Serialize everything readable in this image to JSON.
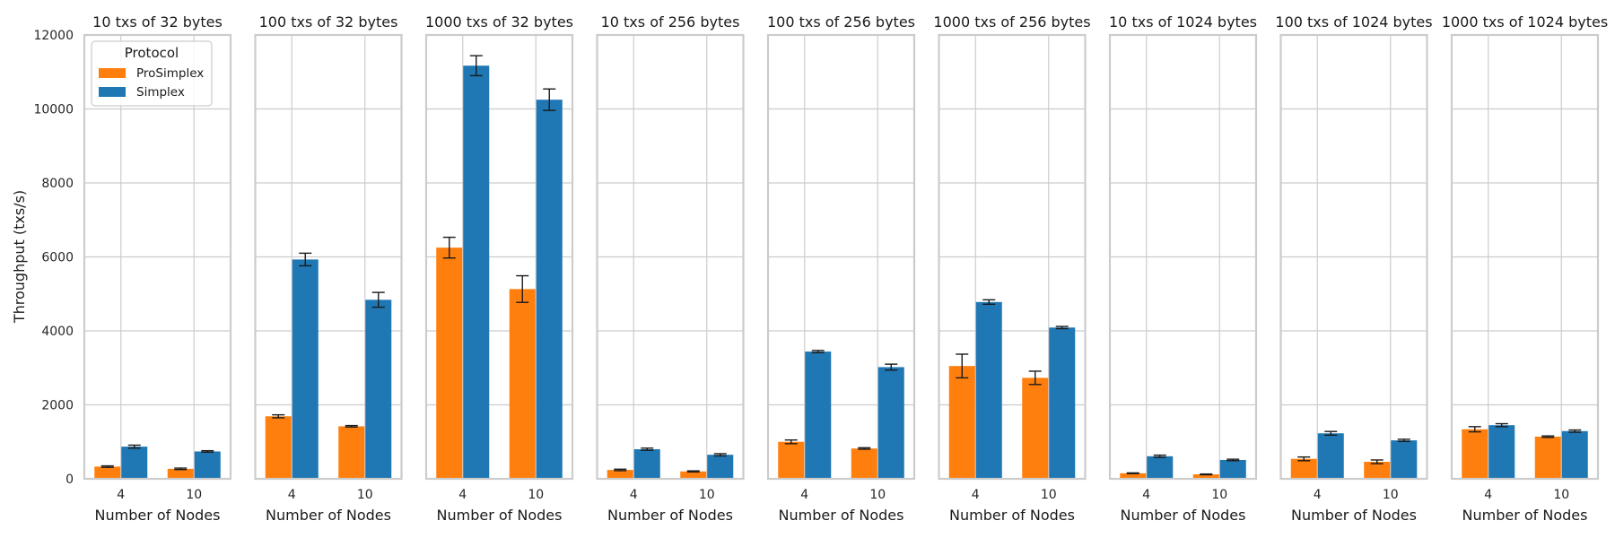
{
  "chart_data": {
    "type": "bar",
    "ylabel": "Throughput (txs/s)",
    "ylim": [
      0,
      12000
    ],
    "yticks": [
      0,
      2000,
      4000,
      6000,
      8000,
      10000,
      12000
    ],
    "grid": true,
    "legend": {
      "title": "Protocol",
      "position": "top-left",
      "entries": [
        {
          "name": "ProSimplex",
          "color": "#ff7f0e"
        },
        {
          "name": "Simplex",
          "color": "#1f77b4"
        }
      ]
    },
    "panels": [
      {
        "title": "10 txs of 32 bytes",
        "xlabel": "Number of Nodes",
        "categories": [
          "4",
          "10"
        ],
        "series": [
          {
            "name": "ProSimplex",
            "values": [
              330,
              270
            ],
            "errors": [
              20,
              20
            ]
          },
          {
            "name": "Simplex",
            "values": [
              870,
              740
            ],
            "errors": [
              40,
              20
            ]
          }
        ]
      },
      {
        "title": "100 txs of 32 bytes",
        "xlabel": "Number of Nodes",
        "categories": [
          "4",
          "10"
        ],
        "series": [
          {
            "name": "ProSimplex",
            "values": [
              1690,
              1420
            ],
            "errors": [
              40,
              20
            ]
          },
          {
            "name": "Simplex",
            "values": [
              5930,
              4840
            ],
            "errors": [
              170,
              200
            ]
          }
        ]
      },
      {
        "title": "1000 txs of 32 bytes",
        "xlabel": "Number of Nodes",
        "categories": [
          "4",
          "10"
        ],
        "series": [
          {
            "name": "ProSimplex",
            "values": [
              6250,
              5130
            ],
            "errors": [
              280,
              360
            ]
          },
          {
            "name": "Simplex",
            "values": [
              11170,
              10250
            ],
            "errors": [
              270,
              290
            ]
          }
        ]
      },
      {
        "title": "10 txs of 256 bytes",
        "xlabel": "Number of Nodes",
        "categories": [
          "4",
          "10"
        ],
        "series": [
          {
            "name": "ProSimplex",
            "values": [
              240,
              200
            ],
            "errors": [
              20,
              15
            ]
          },
          {
            "name": "Simplex",
            "values": [
              800,
              650
            ],
            "errors": [
              30,
              30
            ]
          }
        ]
      },
      {
        "title": "100 txs of 256 bytes",
        "xlabel": "Number of Nodes",
        "categories": [
          "4",
          "10"
        ],
        "series": [
          {
            "name": "ProSimplex",
            "values": [
              1000,
              820
            ],
            "errors": [
              50,
              20
            ]
          },
          {
            "name": "Simplex",
            "values": [
              3440,
              3020
            ],
            "errors": [
              30,
              80
            ]
          }
        ]
      },
      {
        "title": "1000 txs of 256 bytes",
        "xlabel": "Number of Nodes",
        "categories": [
          "4",
          "10"
        ],
        "series": [
          {
            "name": "ProSimplex",
            "values": [
              3050,
              2730
            ],
            "errors": [
              320,
              180
            ]
          },
          {
            "name": "Simplex",
            "values": [
              4780,
              4090
            ],
            "errors": [
              60,
              30
            ]
          }
        ]
      },
      {
        "title": "10 txs of 1024 bytes",
        "xlabel": "Number of Nodes",
        "categories": [
          "4",
          "10"
        ],
        "series": [
          {
            "name": "ProSimplex",
            "values": [
              150,
              120
            ],
            "errors": [
              10,
              10
            ]
          },
          {
            "name": "Simplex",
            "values": [
              610,
              510
            ],
            "errors": [
              30,
              20
            ]
          }
        ]
      },
      {
        "title": "100 txs of 1024 bytes",
        "xlabel": "Number of Nodes",
        "categories": [
          "4",
          "10"
        ],
        "series": [
          {
            "name": "ProSimplex",
            "values": [
              540,
              460
            ],
            "errors": [
              50,
              50
            ]
          },
          {
            "name": "Simplex",
            "values": [
              1230,
              1040
            ],
            "errors": [
              50,
              30
            ]
          }
        ]
      },
      {
        "title": "1000 txs of 1024 bytes",
        "xlabel": "Number of Nodes",
        "categories": [
          "4",
          "10"
        ],
        "series": [
          {
            "name": "ProSimplex",
            "values": [
              1340,
              1140
            ],
            "errors": [
              70,
              20
            ]
          },
          {
            "name": "Simplex",
            "values": [
              1450,
              1290
            ],
            "errors": [
              40,
              30
            ]
          }
        ]
      }
    ]
  }
}
